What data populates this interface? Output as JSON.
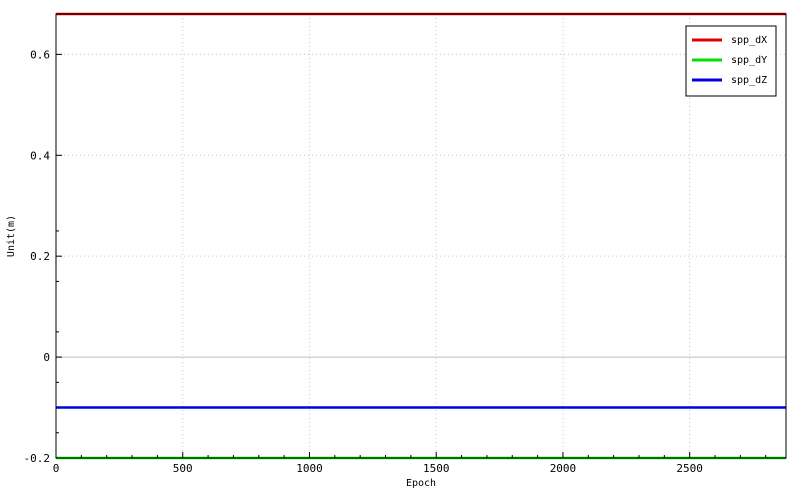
{
  "chart_data": {
    "type": "line",
    "title": "",
    "xlabel": "Epoch",
    "ylabel": "Unit(m)",
    "xlim": [
      0,
      2880
    ],
    "ylim": [
      -0.2,
      0.68
    ],
    "x_ticks": [
      0,
      500,
      1000,
      1500,
      2000,
      2500
    ],
    "x_tick_labels": [
      "0",
      "500",
      "1000",
      "1500",
      "2000",
      "2500"
    ],
    "y_ticks": [
      -0.2,
      0,
      0.2,
      0.4,
      0.6
    ],
    "y_tick_labels": [
      "-0.2",
      "0",
      "0.2",
      "0.4",
      "0.6"
    ],
    "grid": true,
    "grid_style": "dotted",
    "zero_line": true,
    "legend_position": "top-right",
    "series": [
      {
        "name": "spp_dX",
        "color": "#e00000",
        "x": [
          0,
          2880
        ],
        "values": [
          0.68,
          0.68
        ]
      },
      {
        "name": "spp_dY",
        "color": "#00e000",
        "x": [
          0,
          2880
        ],
        "values": [
          -0.2,
          -0.2
        ]
      },
      {
        "name": "spp_dZ",
        "color": "#0000e0",
        "x": [
          0,
          2880
        ],
        "values": [
          -0.1,
          -0.1
        ]
      }
    ]
  }
}
